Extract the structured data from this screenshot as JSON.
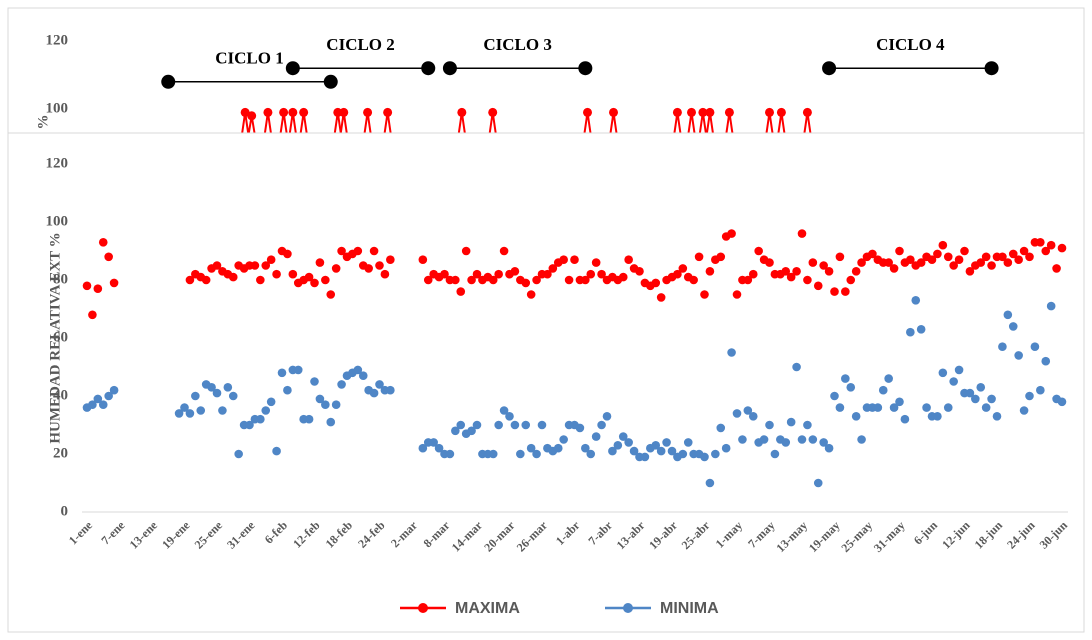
{
  "chart_data": [
    {
      "type": "spikes",
      "ylabel": "%",
      "ylim": [
        92,
        126
      ],
      "yticks": [
        100,
        120
      ],
      "xlim": [
        0,
        180
      ],
      "color": "#ff0000",
      "x": [
        29.2,
        30.4,
        33.4,
        36.3,
        38,
        40,
        46.3,
        47.4,
        51.8,
        55.5,
        69.2,
        74.9,
        92.4,
        97.2,
        109,
        111.6,
        113.7,
        115,
        118.6,
        126,
        128.2,
        133
      ],
      "values": [
        99,
        98,
        99,
        99,
        99,
        99,
        99,
        99,
        99,
        99,
        99,
        99,
        99,
        99,
        99,
        99,
        99,
        99,
        99,
        99,
        99,
        99
      ],
      "annotations": [
        {
          "text": "CICLO 1",
          "x": [
            15,
            45
          ],
          "y": 108
        },
        {
          "text": "CICLO 2",
          "x": [
            38,
            63
          ],
          "y": 112
        },
        {
          "text": "CICLO 3",
          "x": [
            67,
            92
          ],
          "y": 112
        },
        {
          "text": "CICLO 4",
          "x": [
            137,
            167
          ],
          "y": 112
        }
      ]
    },
    {
      "type": "line",
      "ylabel": "HUMEDAD RELATIVA EXT %",
      "ylim": [
        0,
        120
      ],
      "yticks": [
        0,
        20,
        40,
        60,
        80,
        100,
        120
      ],
      "grid": false,
      "legend": "bottom",
      "categories": [
        "1-ene",
        null,
        null,
        null,
        null,
        null,
        "7-ene",
        null,
        null,
        null,
        null,
        null,
        "13-ene",
        null,
        null,
        null,
        null,
        null,
        "19-ene",
        null,
        null,
        null,
        null,
        null,
        "25-ene",
        null,
        null,
        null,
        null,
        null,
        "31-ene",
        null,
        null,
        null,
        null,
        null,
        "6-feb",
        null,
        null,
        null,
        null,
        null,
        "12-feb",
        null,
        null,
        null,
        null,
        null,
        "18-feb",
        null,
        null,
        null,
        null,
        null,
        "24-feb",
        null,
        null,
        null,
        null,
        null,
        "2-mar",
        null,
        null,
        null,
        null,
        null,
        "8-mar",
        null,
        null,
        null,
        null,
        null,
        "14-mar",
        null,
        null,
        null,
        null,
        null,
        "20-mar",
        null,
        null,
        null,
        null,
        null,
        "26-mar",
        null,
        null,
        null,
        null,
        null,
        "1-abr",
        null,
        null,
        null,
        null,
        null,
        "7-abr",
        null,
        null,
        null,
        null,
        null,
        "13-abr",
        null,
        null,
        null,
        null,
        null,
        "19-abr",
        null,
        null,
        null,
        null,
        null,
        "25-abr",
        null,
        null,
        null,
        null,
        null,
        "1-may",
        null,
        null,
        null,
        null,
        null,
        "7-may",
        null,
        null,
        null,
        null,
        null,
        "13-may",
        null,
        null,
        null,
        null,
        null,
        "19-may",
        null,
        null,
        null,
        null,
        null,
        "25-may",
        null,
        null,
        null,
        null,
        null,
        "31-may",
        null,
        null,
        null,
        null,
        null,
        "6-jun",
        null,
        null,
        null,
        null,
        null,
        "12-jun",
        null,
        null,
        null,
        null,
        null,
        "18-jun",
        null,
        null,
        null,
        null,
        null,
        "24-jun",
        null,
        null,
        null,
        null,
        null,
        "30-jun"
      ],
      "series": [
        {
          "name": "MAXIMA",
          "color": "#ff0000",
          "values": [
            78,
            68,
            77,
            93,
            88,
            79,
            null,
            null,
            null,
            null,
            null,
            null,
            null,
            null,
            null,
            null,
            null,
            null,
            null,
            80,
            82,
            81,
            80,
            84,
            85,
            83,
            82,
            81,
            85,
            84,
            85,
            85,
            80,
            85,
            87,
            82,
            90,
            89,
            82,
            79,
            80,
            81,
            79,
            86,
            80,
            75,
            84,
            90,
            88,
            89,
            90,
            85,
            84,
            90,
            85,
            82,
            87,
            null,
            null,
            null,
            null,
            null,
            87,
            80,
            82,
            81,
            82,
            80,
            80,
            76,
            90,
            80,
            82,
            80,
            81,
            80,
            82,
            90,
            82,
            83,
            80,
            79,
            75,
            80,
            82,
            82,
            84,
            86,
            87,
            80,
            87,
            80,
            80,
            82,
            86,
            82,
            80,
            81,
            80,
            81,
            87,
            84,
            83,
            79,
            78,
            79,
            74,
            80,
            81,
            82,
            84,
            81,
            80,
            88,
            75,
            83,
            87,
            88,
            95,
            96,
            75,
            80,
            80,
            82,
            90,
            87,
            86,
            82,
            82,
            83,
            81,
            83,
            96,
            80,
            86,
            78,
            85,
            83,
            76,
            88,
            76,
            80,
            83,
            86,
            88,
            89,
            87,
            86,
            86,
            84,
            90,
            86,
            87,
            85,
            86,
            88,
            87,
            89,
            92,
            88,
            85,
            87,
            90,
            83,
            85,
            86,
            88,
            85,
            88,
            88,
            86,
            89,
            87,
            90,
            88,
            93,
            93,
            90,
            92,
            84,
            91
          ]
        },
        {
          "name": "MINIMA",
          "color": "#4f86c6",
          "values": [
            36,
            37,
            39,
            37,
            40,
            42,
            null,
            null,
            null,
            null,
            null,
            null,
            null,
            null,
            null,
            null,
            null,
            34,
            36,
            34,
            40,
            35,
            44,
            43,
            41,
            35,
            43,
            40,
            20,
            30,
            30,
            32,
            32,
            35,
            38,
            21,
            48,
            42,
            49,
            49,
            32,
            32,
            45,
            39,
            37,
            31,
            37,
            44,
            47,
            48,
            49,
            47,
            42,
            41,
            44,
            42,
            42,
            null,
            null,
            null,
            null,
            null,
            22,
            24,
            24,
            22,
            20,
            20,
            28,
            30,
            27,
            28,
            30,
            20,
            20,
            20,
            30,
            35,
            33,
            30,
            20,
            30,
            22,
            20,
            30,
            22,
            21,
            22,
            25,
            30,
            30,
            29,
            22,
            20,
            26,
            30,
            33,
            21,
            23,
            26,
            24,
            21,
            19,
            19,
            22,
            23,
            21,
            24,
            21,
            19,
            20,
            24,
            20,
            20,
            19,
            10,
            20,
            29,
            22,
            55,
            34,
            25,
            35,
            33,
            24,
            25,
            30,
            20,
            25,
            24,
            31,
            50,
            25,
            30,
            25,
            10,
            24,
            22,
            40,
            36,
            46,
            43,
            33,
            25,
            36,
            36,
            36,
            42,
            46,
            36,
            38,
            32,
            62,
            73,
            63,
            36,
            33,
            33,
            48,
            36,
            45,
            49,
            41,
            41,
            39,
            43,
            36,
            39,
            33,
            57,
            68,
            64,
            54,
            35,
            40,
            57,
            42,
            52,
            71,
            39,
            38
          ]
        }
      ]
    }
  ]
}
